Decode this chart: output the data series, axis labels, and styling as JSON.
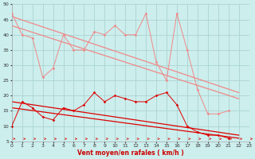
{
  "xlabel": "Vent moyen/en rafales ( km/h )",
  "xlim": [
    0,
    23
  ],
  "ylim": [
    5,
    50
  ],
  "yticks": [
    5,
    10,
    15,
    20,
    25,
    30,
    35,
    40,
    45,
    50
  ],
  "xticks": [
    0,
    1,
    2,
    3,
    4,
    5,
    6,
    7,
    8,
    9,
    10,
    11,
    12,
    13,
    14,
    15,
    16,
    17,
    18,
    19,
    20,
    21,
    22,
    23
  ],
  "background_color": "#cceeed",
  "grid_color": "#aad4d2",
  "series_light_jagged_x": [
    0,
    1,
    2,
    3,
    4,
    5,
    6,
    7,
    8,
    9,
    10,
    11,
    12,
    13,
    14,
    15,
    16,
    17,
    18,
    19,
    20,
    21
  ],
  "series_light_jagged_y": [
    47,
    40,
    39,
    26,
    29,
    40,
    35,
    35,
    41,
    40,
    43,
    40,
    40,
    47,
    31,
    25,
    47,
    35,
    22,
    14,
    14,
    15
  ],
  "light_line1_x": [
    0,
    22
  ],
  "light_line1_y": [
    46,
    21
  ],
  "light_line2_x": [
    0,
    22
  ],
  "light_line2_y": [
    43,
    19
  ],
  "series_dark_jagged_x": [
    0,
    1,
    2,
    3,
    4,
    5,
    6,
    7,
    8,
    9,
    10,
    11,
    12,
    13,
    14,
    15,
    16,
    17,
    18,
    19,
    20,
    21
  ],
  "series_dark_jagged_y": [
    10,
    18,
    16,
    13,
    12,
    16,
    15,
    17,
    21,
    18,
    20,
    19,
    18,
    18,
    20,
    21,
    17,
    10,
    8,
    7,
    7,
    6
  ],
  "dark_line1_x": [
    0,
    22
  ],
  "dark_line1_y": [
    18,
    7
  ],
  "dark_line2_x": [
    0,
    22
  ],
  "dark_line2_y": [
    16,
    6
  ],
  "color_light": "#f08888",
  "color_dark": "#dd0000",
  "arrow_color": "#dd2222"
}
